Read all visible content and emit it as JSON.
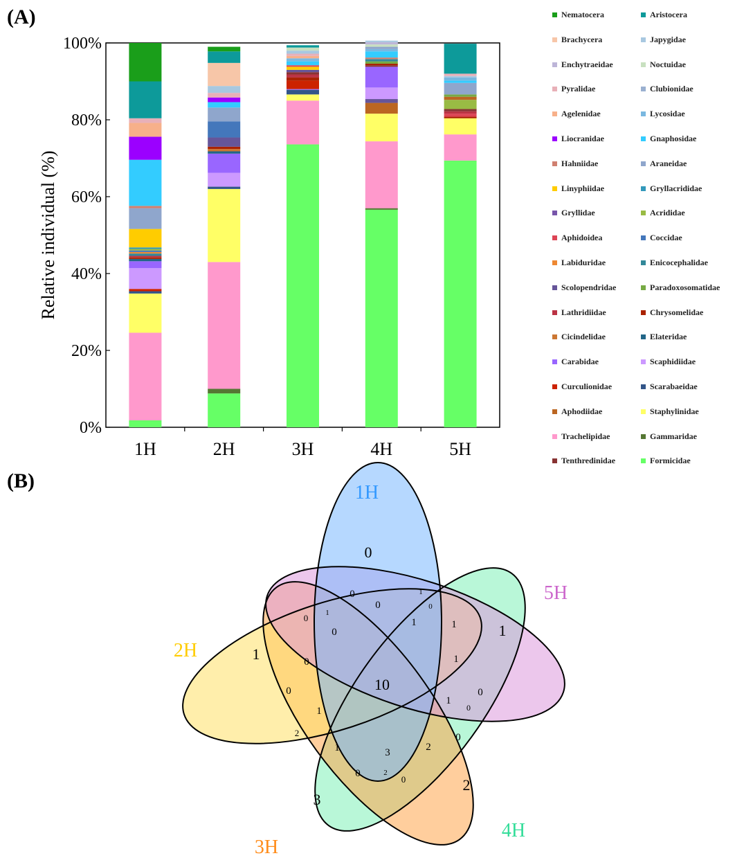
{
  "panels": {
    "a_label": "(A)",
    "b_label": "(B)"
  },
  "colors": {
    "Nematocera": "#1a9e1a",
    "Aristocera": "#0d9a9a",
    "Brachycera": "#f7c6a8",
    "Japygidae": "#a8c8e0",
    "Enchytraeidae": "#bdb5d8",
    "Noctuidae": "#c8e0c0",
    "Pyralidae": "#e8b0b8",
    "Clubionidae": "#9ab0d0",
    "Agelenidae": "#f7b08a",
    "Lycosidae": "#7ab8e0",
    "Liocranidae": "#9b00ff",
    "Gnaphosidae": "#33ccff",
    "Hahniidae": "#d08070",
    "Araneidae": "#8fa6cc",
    "Linyphiidae": "#ffcc00",
    "Gryllacrididae": "#3399bb",
    "Gryllidae": "#7755aa",
    "Acrididae": "#99bb44",
    "Aphidoidea": "#dd4455",
    "Coccidae": "#4477bb",
    "Labiduridae": "#ee8833",
    "Enicocephalidae": "#338899",
    "Scolopendridae": "#665599",
    "Paradoxosomatidae": "#77aa44",
    "Lathridiidae": "#bb3344",
    "Chrysomelidae": "#aa2200",
    "Cicindelidae": "#cc7733",
    "Elateridae": "#226688",
    "Carabidae": "#9966ff",
    "Scaphidiidae": "#cc99ff",
    "Curculionidae": "#cc2200",
    "Scarabaeidae": "#335588",
    "Aphodiidae": "#bb6622",
    "Staphylinidae": "#ffff66",
    "Trachelipidae": "#ff99cc",
    "Gammaridae": "#557733",
    "Tenthredinidae": "#883333",
    "Formicidae": "#66ff66"
  },
  "chart_data": {
    "type": "bar",
    "stacked": true,
    "categories": [
      "1H",
      "2H",
      "3H",
      "4H",
      "5H"
    ],
    "ylabel": "Relative individual (%)",
    "ylim": [
      0,
      100
    ],
    "yticks": [
      "0%",
      "20%",
      "40%",
      "60%",
      "80%",
      "100%"
    ],
    "legend_position": "right",
    "legend": [
      "Nematocera",
      "Aristocera",
      "Brachycera",
      "Japygidae",
      "Enchytraeidae",
      "Noctuidae",
      "Pyralidae",
      "Clubionidae",
      "Agelenidae",
      "Lycosidae",
      "Liocranidae",
      "Gnaphosidae",
      "Hahniidae",
      "Araneidae",
      "Linyphiidae",
      "Gryllacrididae",
      "Gryllidae",
      "Acrididae",
      "Aphidoidea",
      "Coccidae",
      "Labiduridae",
      "Enicocephalidae",
      "Scolopendridae",
      "Paradoxosomatidae",
      "Lathridiidae",
      "Chrysomelidae",
      "Cicindelidae",
      "Elateridae",
      "Carabidae",
      "Scaphidiidae",
      "Curculionidae",
      "Scarabaeidae",
      "Aphodiidae",
      "Staphylinidae",
      "Trachelipidae",
      "Gammaridae",
      "Tenthredinidae",
      "Formicidae"
    ],
    "stacks": [
      [
        [
          "Formicidae",
          1.8
        ],
        [
          "Trachelipidae",
          22.8
        ],
        [
          "Staphylinidae",
          10.2
        ],
        [
          "Scarabaeidae",
          0.6
        ],
        [
          "Curculionidae",
          0.6
        ],
        [
          "Scaphidiidae",
          5.4
        ],
        [
          "Carabidae",
          1.8
        ],
        [
          "Elateridae",
          0.6
        ],
        [
          "Chrysomelidae",
          0.4
        ],
        [
          "Lathridiidae",
          0.4
        ],
        [
          "Enicocephalidae",
          0.6
        ],
        [
          "Labiduridae",
          0.4
        ],
        [
          "Coccidae",
          0.4
        ],
        [
          "Acrididae",
          0.4
        ],
        [
          "Gryllacrididae",
          0.4
        ],
        [
          "Linyphiidae",
          4.8
        ],
        [
          "Araneidae",
          5.4
        ],
        [
          "Hahniidae",
          0.6
        ],
        [
          "Gnaphosidae",
          12.0
        ],
        [
          "Liocranidae",
          6.0
        ],
        [
          "Agelenidae",
          3.6
        ],
        [
          "Pyralidae",
          1.2
        ],
        [
          "Aristocera",
          9.6
        ],
        [
          "Nematocera",
          10.0
        ]
      ],
      [
        [
          "Formicidae",
          8.8
        ],
        [
          "Gammaridae",
          1.2
        ],
        [
          "Trachelipidae",
          33.0
        ],
        [
          "Staphylinidae",
          19.0
        ],
        [
          "Scarabaeidae",
          0.6
        ],
        [
          "Scaphidiidae",
          3.6
        ],
        [
          "Carabidae",
          5.0
        ],
        [
          "Elateridae",
          0.6
        ],
        [
          "Cicindelidae",
          0.6
        ],
        [
          "Chrysomelidae",
          0.6
        ],
        [
          "Scolopendridae",
          2.4
        ],
        [
          "Coccidae",
          4.2
        ],
        [
          "Araneidae",
          3.6
        ],
        [
          "Gnaphosidae",
          1.4
        ],
        [
          "Liocranidae",
          1.2
        ],
        [
          "Pyralidae",
          1.2
        ],
        [
          "Japygidae",
          1.8
        ],
        [
          "Brachycera",
          6.0
        ],
        [
          "Aristocera",
          3.0
        ],
        [
          "Nematocera",
          1.2
        ]
      ],
      [
        [
          "Formicidae",
          73.6
        ],
        [
          "Trachelipidae",
          11.4
        ],
        [
          "Staphylinidae",
          1.6
        ],
        [
          "Scarabaeidae",
          1.2
        ],
        [
          "Carabidae",
          0.2
        ],
        [
          "Curculionidae",
          2.2
        ],
        [
          "Chrysomelidae",
          0.8
        ],
        [
          "Lathridiidae",
          0.8
        ],
        [
          "Tenthredinidae",
          0.6
        ],
        [
          "Scolopendridae",
          0.6
        ],
        [
          "Linyphiidae",
          0.8
        ],
        [
          "Aphidoidea",
          0.4
        ],
        [
          "Gnaphosidae",
          1.0
        ],
        [
          "Lycosidae",
          0.8
        ],
        [
          "Agelenidae",
          0.6
        ],
        [
          "Pyralidae",
          0.6
        ],
        [
          "Japygidae",
          0.8
        ],
        [
          "Noctuidae",
          0.8
        ],
        [
          "Aristocera",
          0.6
        ]
      ],
      [
        [
          "Formicidae",
          56.6
        ],
        [
          "Gammaridae",
          0.4
        ],
        [
          "Trachelipidae",
          17.4
        ],
        [
          "Staphylinidae",
          7.2
        ],
        [
          "Aphodiidae",
          2.8
        ],
        [
          "Scolopendridae",
          1.0
        ],
        [
          "Scaphidiidae",
          3.0
        ],
        [
          "Carabidae",
          5.4
        ],
        [
          "Tenthredinidae",
          0.4
        ],
        [
          "Chrysomelidae",
          0.4
        ],
        [
          "Paradoxosomatidae",
          0.6
        ],
        [
          "Enicocephalidae",
          0.6
        ],
        [
          "Hahniidae",
          0.4
        ],
        [
          "Gnaphosidae",
          1.6
        ],
        [
          "Lycosidae",
          0.6
        ],
        [
          "Araneidae",
          0.6
        ],
        [
          "Noctuidae",
          0.6
        ],
        [
          "Enchytraeidae",
          0.6
        ],
        [
          "Japygidae",
          0.4
        ]
      ],
      [
        [
          "Formicidae",
          69.4
        ],
        [
          "Trachelipidae",
          6.8
        ],
        [
          "Staphylinidae",
          4.2
        ],
        [
          "Chrysomelidae",
          0.4
        ],
        [
          "Aphidoidea",
          0.8
        ],
        [
          "Lathridiidae",
          0.6
        ],
        [
          "Tenthredinidae",
          0.6
        ],
        [
          "Acrididae",
          2.4
        ],
        [
          "Aphodiidae",
          0.8
        ],
        [
          "Paradoxosomatidae",
          0.6
        ],
        [
          "Araneidae",
          3.0
        ],
        [
          "Gnaphosidae",
          0.6
        ],
        [
          "Lycosidae",
          0.8
        ],
        [
          "Japygidae",
          0.4
        ],
        [
          "Pyralidae",
          0.6
        ],
        [
          "Aristocera",
          7.8
        ]
      ]
    ]
  },
  "venn": {
    "sets": [
      {
        "name": "1H",
        "color": "#3399ff",
        "fill": "#7ab8ff"
      },
      {
        "name": "2H",
        "color": "#ffcc00",
        "fill": "#ffe066"
      },
      {
        "name": "3H",
        "color": "#ff8c1a",
        "fill": "#ffa64d"
      },
      {
        "name": "4H",
        "color": "#33dd99",
        "fill": "#80f0b8"
      },
      {
        "name": "5H",
        "color": "#cc66cc",
        "fill": "#dd99dd"
      }
    ],
    "counts": {
      "only_1H": "0",
      "only_2H": "1",
      "only_3H": "3",
      "only_4H": "2",
      "only_5H": "1",
      "all": "10",
      "r1": "0",
      "r2": "1",
      "r3": "0",
      "r4": "0",
      "r5": "1",
      "r6": "1",
      "r7": "2",
      "r8": "1",
      "r9": "0",
      "r10": "1",
      "r11": "0",
      "r12": "1",
      "r13": "0",
      "r14": "0",
      "r15": "1",
      "r16": "0",
      "r17": "2",
      "r18": "1",
      "r19": "3",
      "r20": "2",
      "r21": "0",
      "r22": "0",
      "r23": "2",
      "r24": "0",
      "r25": "1",
      "r26": "0"
    }
  }
}
